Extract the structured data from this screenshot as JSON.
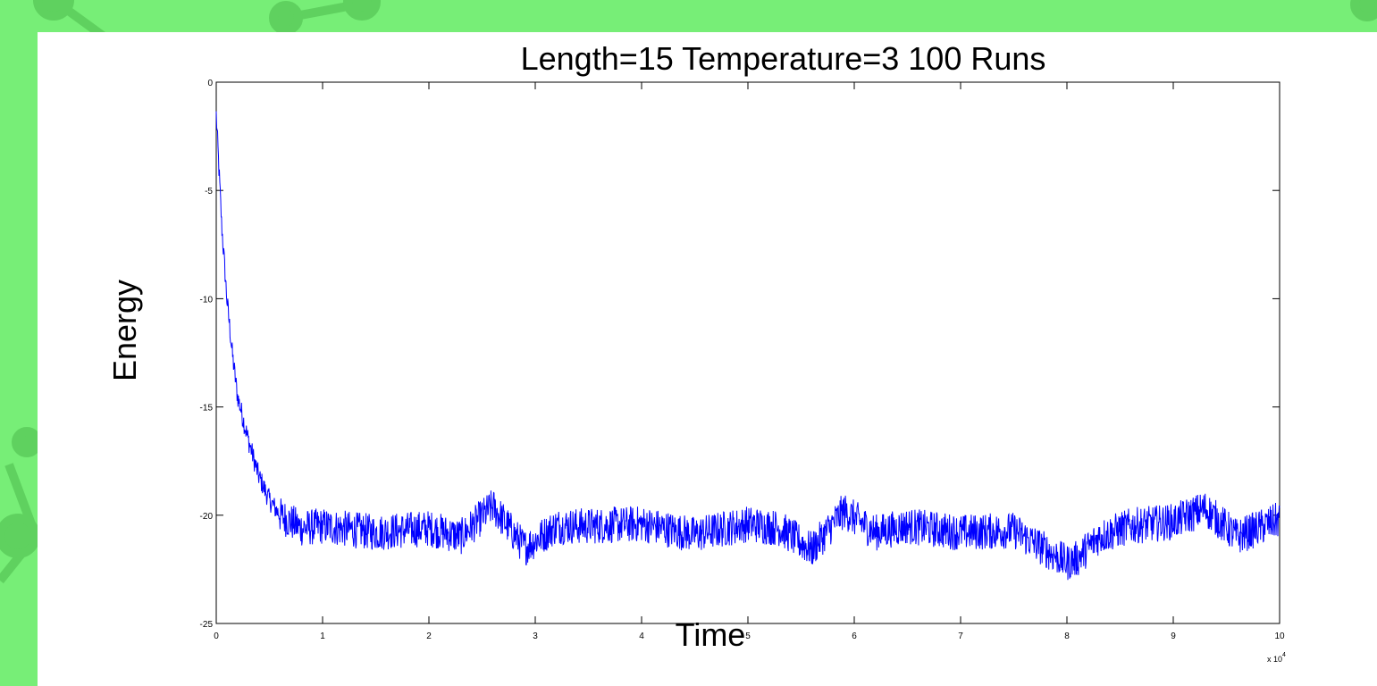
{
  "background_color": "#77ee77",
  "chart_data": {
    "type": "line",
    "title": "Length=15 Temperature=3 100 Runs",
    "xlabel": "Time",
    "ylabel": "Energy",
    "x_multiplier_label": "x 10",
    "x_multiplier_exponent": "4",
    "xlim": [
      0,
      10
    ],
    "ylim": [
      -25,
      0
    ],
    "xticks": [
      "0",
      "1",
      "2",
      "3",
      "4",
      "5",
      "6",
      "7",
      "8",
      "9",
      "10"
    ],
    "yticks": [
      "0",
      "-5",
      "-10",
      "-15",
      "-20",
      "-25"
    ],
    "grid": false,
    "line_color": "#0000ff",
    "series": [
      {
        "x": [
          0,
          0.02,
          0.05,
          0.1,
          0.15,
          0.2,
          0.3,
          0.4,
          0.5,
          0.6,
          0.8,
          1.0,
          1.5,
          2.0,
          2.3,
          2.6,
          2.9,
          3.2,
          3.5,
          4.0,
          4.5,
          5.0,
          5.3,
          5.6,
          5.9,
          6.2,
          6.5,
          7.0,
          7.5,
          8.0,
          8.1,
          8.3,
          8.6,
          9.0,
          9.3,
          9.6,
          10.0
        ],
        "values": [
          -1.5,
          -3.5,
          -6.5,
          -10.0,
          -12.5,
          -14.5,
          -16.5,
          -18.2,
          -19.3,
          -20.0,
          -20.6,
          -20.5,
          -20.8,
          -20.6,
          -21.0,
          -19.6,
          -21.5,
          -20.5,
          -20.5,
          -20.4,
          -20.9,
          -20.4,
          -20.6,
          -21.6,
          -19.8,
          -20.8,
          -20.5,
          -20.8,
          -20.7,
          -22.2,
          -22.0,
          -21.0,
          -20.5,
          -20.3,
          -19.7,
          -21.0,
          -20.2
        ]
      }
    ]
  }
}
